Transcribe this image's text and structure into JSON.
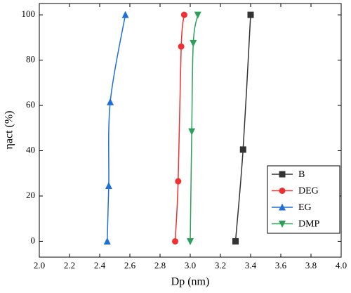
{
  "chart_data": {
    "type": "line",
    "xlabel": "Dp (nm)",
    "ylabel": "ηact (%)",
    "xlim": [
      2.0,
      4.0
    ],
    "ylim": [
      -7,
      105
    ],
    "xticks": [
      {
        "value": 2.0,
        "label": "2.0"
      },
      {
        "value": 2.2,
        "label": "2.2"
      },
      {
        "value": 2.4,
        "label": "2.4"
      },
      {
        "value": 2.6,
        "label": "2.6"
      },
      {
        "value": 2.8,
        "label": "2.8"
      },
      {
        "value": 3.0,
        "label": "3.0"
      },
      {
        "value": 3.2,
        "label": "3.2"
      },
      {
        "value": 3.4,
        "label": "3.4"
      },
      {
        "value": 3.6,
        "label": "3.6"
      },
      {
        "value": 3.8,
        "label": "3.8"
      },
      {
        "value": 4.0,
        "label": "4.0"
      }
    ],
    "yticks": [
      0,
      20,
      40,
      60,
      80,
      100
    ],
    "legend": "lower right",
    "series": [
      {
        "name": "B",
        "color": "#333333",
        "marker": "square",
        "x": [
          3.3,
          3.35,
          3.4
        ],
        "values": [
          0,
          40.5,
          100
        ]
      },
      {
        "name": "DEG",
        "color": "#ee3030",
        "marker": "circle",
        "x": [
          2.9,
          2.92,
          2.94,
          2.96
        ],
        "values": [
          0,
          26.5,
          86,
          100
        ]
      },
      {
        "name": "EG",
        "color": "#1f6fd8",
        "marker": "triangle-up",
        "x": [
          2.45,
          2.46,
          2.47,
          2.57
        ],
        "values": [
          0,
          24.5,
          61.5,
          100
        ]
      },
      {
        "name": "DMP",
        "color": "#2ca05a",
        "marker": "triangle-down",
        "x": [
          3.0,
          3.01,
          3.02,
          3.05
        ],
        "values": [
          0,
          48.5,
          87.5,
          100
        ]
      }
    ]
  }
}
